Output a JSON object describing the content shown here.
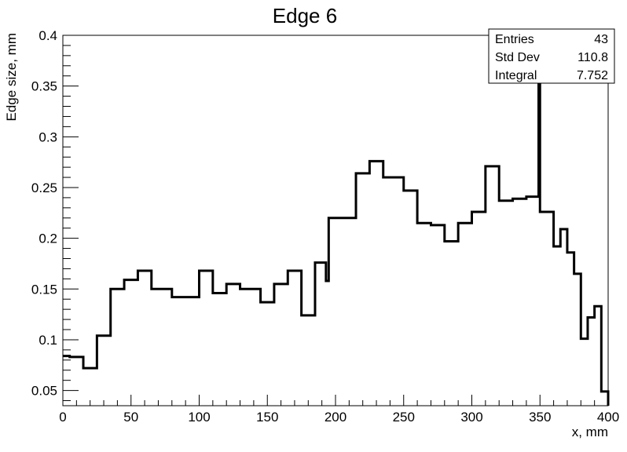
{
  "chart_data": {
    "type": "line",
    "style": "step-histogram",
    "title": "Edge 6",
    "xlabel": "x, mm",
    "ylabel": "Edge size, mm",
    "xlim": [
      0,
      400
    ],
    "ylim": [
      0.035,
      0.4
    ],
    "x_ticks": [
      0,
      50,
      100,
      150,
      200,
      250,
      300,
      350,
      400
    ],
    "y_ticks": [
      0.05,
      0.1,
      0.15,
      0.2,
      0.25,
      0.3,
      0.35,
      0.4
    ],
    "x_tick_labels": [
      "0",
      "50",
      "100",
      "150",
      "200",
      "250",
      "300",
      "350",
      "400"
    ],
    "y_tick_labels": [
      "0.05",
      "0.1",
      "0.15",
      "0.2",
      "0.25",
      "0.3",
      "0.35",
      "0.4"
    ],
    "line_color": "#000000",
    "grid": false,
    "series": [
      {
        "bin_edges": [
          0,
          5,
          15,
          25,
          35,
          45,
          55,
          65,
          80,
          100,
          110,
          120,
          130,
          145,
          155,
          165,
          175,
          185,
          193,
          195,
          215,
          225,
          235,
          250,
          260,
          270,
          280,
          290,
          300,
          310,
          320,
          330,
          340,
          349,
          350,
          360,
          365,
          370,
          375,
          380,
          385,
          390,
          395,
          400
        ],
        "values": [
          0.084,
          0.083,
          0.072,
          0.104,
          0.15,
          0.159,
          0.168,
          0.15,
          0.142,
          0.168,
          0.146,
          0.155,
          0.15,
          0.137,
          0.155,
          0.168,
          0.124,
          0.176,
          0.158,
          0.22,
          0.264,
          0.276,
          0.26,
          0.247,
          0.215,
          0.213,
          0.197,
          0.215,
          0.226,
          0.271,
          0.237,
          0.239,
          0.241,
          0.4,
          0.226,
          0.192,
          0.209,
          0.186,
          0.165,
          0.101,
          0.122,
          0.133,
          0.049
        ]
      }
    ]
  },
  "stats_box": {
    "rows": [
      {
        "label": "Entries",
        "value": "43"
      },
      {
        "label": "Std Dev",
        "value": "110.8"
      },
      {
        "label": "Integral",
        "value": "7.752"
      }
    ]
  }
}
